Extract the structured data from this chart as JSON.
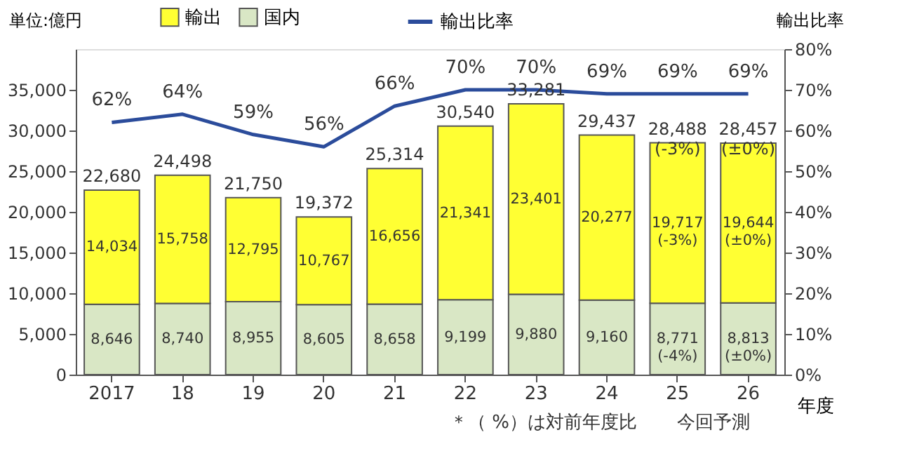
{
  "chart_data": {
    "type": "bar",
    "stacked": true,
    "ylabel": "単位:億円",
    "y2label": "輸出比率",
    "xlabel": "年度",
    "categories": [
      "2017",
      "18",
      "19",
      "20",
      "21",
      "22",
      "23",
      "24",
      "25",
      "26"
    ],
    "series": [
      {
        "name": "国内",
        "color": "#d9e7c5",
        "values": [
          8646,
          8740,
          8955,
          8605,
          8658,
          9199,
          9880,
          9160,
          8771,
          8813
        ],
        "value_labels": [
          "8,646",
          "8,740",
          "8,955",
          "8,605",
          "8,658",
          "9,199",
          "9,880",
          "9,160",
          "8,771 (-4%)",
          "8,813 (±0%)"
        ]
      },
      {
        "name": "輸出",
        "color": "#ffff33",
        "values": [
          14034,
          15758,
          12795,
          10767,
          16656,
          21341,
          23401,
          20277,
          19717,
          19644
        ],
        "value_labels": [
          "14,034",
          "15,758",
          "12,795",
          "10,767",
          "16,656",
          "21,341",
          "23,401",
          "20,277",
          "19,717 (-3%)",
          "19,644 (±0%)"
        ]
      },
      {
        "name": "輸出比率",
        "type": "line",
        "axis": "y2",
        "color": "#2b4c9b",
        "values": [
          62,
          64,
          59,
          56,
          66,
          70,
          70,
          69,
          69,
          69
        ],
        "value_labels": [
          "62%",
          "64%",
          "59%",
          "56%",
          "66%",
          "70%",
          "70%",
          "69%",
          "69%",
          "69%"
        ]
      }
    ],
    "totals": [
      "22,680",
      "24,498",
      "21,750",
      "19,372",
      "25,314",
      "30,540",
      "33,281",
      "29,437",
      "28,488 (-3%)",
      "28,457 (±0%)"
    ],
    "ylim": [
      0,
      40000
    ],
    "yticks": [
      0,
      {
        "value": 5000,
        "label": "5,000"
      },
      {
        "value": 10000,
        "label": "10,000"
      },
      {
        "value": 15000,
        "label": "15,000"
      },
      {
        "value": 20000,
        "label": "20,000"
      },
      {
        "value": 25000,
        "label": "25,000"
      },
      {
        "value": 30000,
        "label": "30,000"
      },
      {
        "value": 35000,
        "label": "35,000"
      }
    ],
    "y2lim": [
      0,
      80
    ],
    "y2ticks": [
      {
        "value": 0,
        "label": "0%"
      },
      {
        "value": 10,
        "label": "10%"
      },
      {
        "value": 20,
        "label": "20%"
      },
      {
        "value": 30,
        "label": "30%"
      },
      {
        "value": 40,
        "label": "40%"
      },
      {
        "value": 50,
        "label": "50%"
      },
      {
        "value": 60,
        "label": "60%"
      },
      {
        "value": 70,
        "label": "70%"
      },
      {
        "value": 80,
        "label": "80%"
      }
    ],
    "annotations": [
      "＊（ %）は対前年度比",
      "今回予測"
    ],
    "grid": false,
    "legend": "top",
    "marker": "none",
    "line_style": "solid"
  }
}
